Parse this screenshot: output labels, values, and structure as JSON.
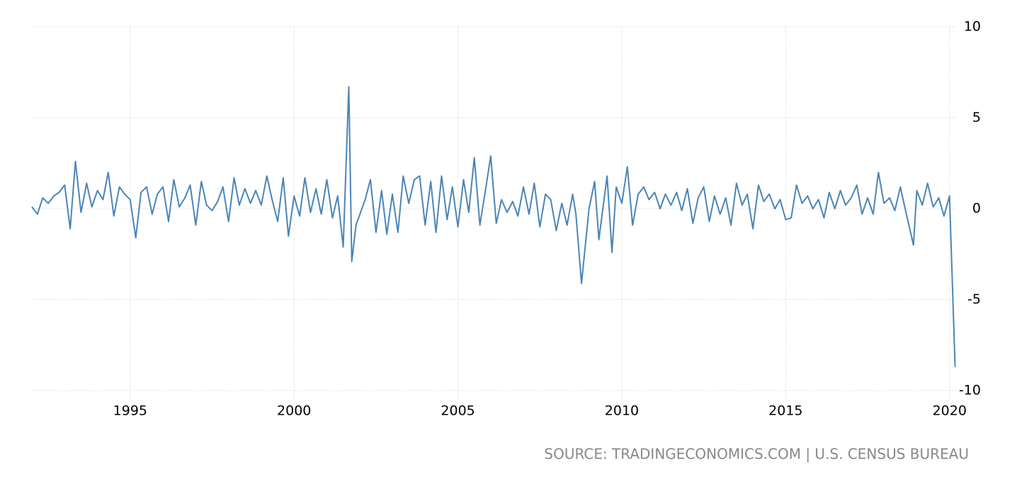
{
  "chart_data": {
    "type": "line",
    "source": "SOURCE: TRADINGECONOMICS.COM | U.S. CENSUS BUREAU",
    "color": "#4a85b7",
    "grid": true,
    "x": [
      1992,
      1992.17,
      1992.33,
      1992.5,
      1992.67,
      1992.83,
      1993,
      1993.17,
      1993.33,
      1993.5,
      1993.67,
      1993.83,
      1994,
      1994.17,
      1994.33,
      1994.5,
      1994.67,
      1994.83,
      1995,
      1995.17,
      1995.33,
      1995.5,
      1995.67,
      1995.83,
      1996,
      1996.17,
      1996.33,
      1996.5,
      1996.67,
      1996.83,
      1997,
      1997.17,
      1997.33,
      1997.5,
      1997.67,
      1997.83,
      1998,
      1998.17,
      1998.33,
      1998.5,
      1998.67,
      1998.83,
      1999,
      1999.17,
      1999.33,
      1999.5,
      1999.67,
      1999.83,
      2000,
      2000.17,
      2000.33,
      2000.5,
      2000.67,
      2000.83,
      2001,
      2001.17,
      2001.33,
      2001.5,
      2001.67,
      2001.76,
      2001.89,
      2002.17,
      2002.33,
      2002.5,
      2002.67,
      2002.83,
      2003,
      2003.17,
      2003.33,
      2003.5,
      2003.67,
      2003.83,
      2004,
      2004.17,
      2004.33,
      2004.5,
      2004.67,
      2004.83,
      2005,
      2005.17,
      2005.33,
      2005.5,
      2005.67,
      2005.83,
      2006,
      2006.17,
      2006.33,
      2006.5,
      2006.67,
      2006.83,
      2007,
      2007.17,
      2007.33,
      2007.5,
      2007.67,
      2007.83,
      2008,
      2008.17,
      2008.33,
      2008.5,
      2008.6,
      2008.77,
      2009,
      2009.17,
      2009.3,
      2009.55,
      2009.7,
      2009.83,
      2010,
      2010.17,
      2010.33,
      2010.5,
      2010.67,
      2010.83,
      2011,
      2011.17,
      2011.33,
      2011.5,
      2011.67,
      2011.83,
      2012,
      2012.17,
      2012.33,
      2012.5,
      2012.67,
      2012.83,
      2013,
      2013.17,
      2013.33,
      2013.5,
      2013.67,
      2013.83,
      2014,
      2014.17,
      2014.33,
      2014.5,
      2014.67,
      2014.83,
      2015,
      2015.17,
      2015.33,
      2015.5,
      2015.67,
      2015.83,
      2016,
      2016.17,
      2016.33,
      2016.5,
      2016.67,
      2016.83,
      2017,
      2017.17,
      2017.33,
      2017.5,
      2017.67,
      2017.83,
      2018,
      2018.17,
      2018.33,
      2018.5,
      2018.67,
      2018.9,
      2019,
      2019.17,
      2019.33,
      2019.5,
      2019.67,
      2019.83,
      2020,
      2020.17
    ],
    "values": [
      0.1,
      -0.3,
      0.6,
      0.3,
      0.7,
      0.9,
      1.3,
      -1.1,
      2.6,
      -0.2,
      1.4,
      0.1,
      1.0,
      0.5,
      2.0,
      -0.4,
      1.2,
      0.8,
      0.5,
      -1.6,
      0.9,
      1.2,
      -0.3,
      0.8,
      1.2,
      -0.7,
      1.6,
      0.1,
      0.6,
      1.3,
      -0.9,
      1.5,
      0.2,
      -0.1,
      0.4,
      1.2,
      -0.7,
      1.7,
      0.2,
      1.1,
      0.3,
      1.0,
      0.2,
      1.8,
      0.5,
      -0.7,
      1.7,
      -1.5,
      0.7,
      -0.4,
      1.7,
      -0.2,
      1.1,
      -0.3,
      1.6,
      -0.5,
      0.7,
      -2.1,
      6.7,
      -2.9,
      -0.9,
      0.5,
      1.6,
      -1.3,
      1.0,
      -1.4,
      0.8,
      -1.3,
      1.8,
      0.3,
      1.6,
      1.8,
      -0.9,
      1.5,
      -1.3,
      1.8,
      -0.6,
      1.2,
      -1.0,
      1.6,
      -0.2,
      2.8,
      -0.9,
      0.9,
      2.9,
      -0.8,
      0.5,
      -0.2,
      0.4,
      -0.4,
      1.2,
      -0.3,
      1.4,
      -1.0,
      0.8,
      0.5,
      -1.2,
      0.3,
      -0.9,
      0.8,
      -0.3,
      -4.1,
      0.0,
      1.5,
      -1.7,
      1.8,
      -2.4,
      1.2,
      0.3,
      2.3,
      -0.9,
      0.8,
      1.2,
      0.5,
      0.9,
      0.0,
      0.8,
      0.2,
      0.9,
      -0.1,
      1.1,
      -0.8,
      0.6,
      1.2,
      -0.7,
      0.7,
      -0.3,
      0.6,
      -0.9,
      1.4,
      0.2,
      0.8,
      -1.1,
      1.3,
      0.4,
      0.8,
      0.0,
      0.5,
      -0.6,
      -0.5,
      1.3,
      0.3,
      0.7,
      0.0,
      0.5,
      -0.5,
      0.9,
      0.0,
      1.0,
      0.2,
      0.6,
      1.3,
      -0.3,
      0.6,
      -0.3,
      2.0,
      0.3,
      0.6,
      -0.1,
      1.2,
      -0.2,
      -2.0,
      1.0,
      0.2,
      1.4,
      0.1,
      0.6,
      -0.4,
      0.7,
      -8.7
    ],
    "xlim": [
      1992,
      2020.2
    ],
    "xticks": [
      1995,
      2000,
      2005,
      2010,
      2015,
      2020
    ],
    "ylim": [
      -10,
      10
    ],
    "yticks": [
      10,
      5,
      0,
      -5,
      -10
    ]
  }
}
